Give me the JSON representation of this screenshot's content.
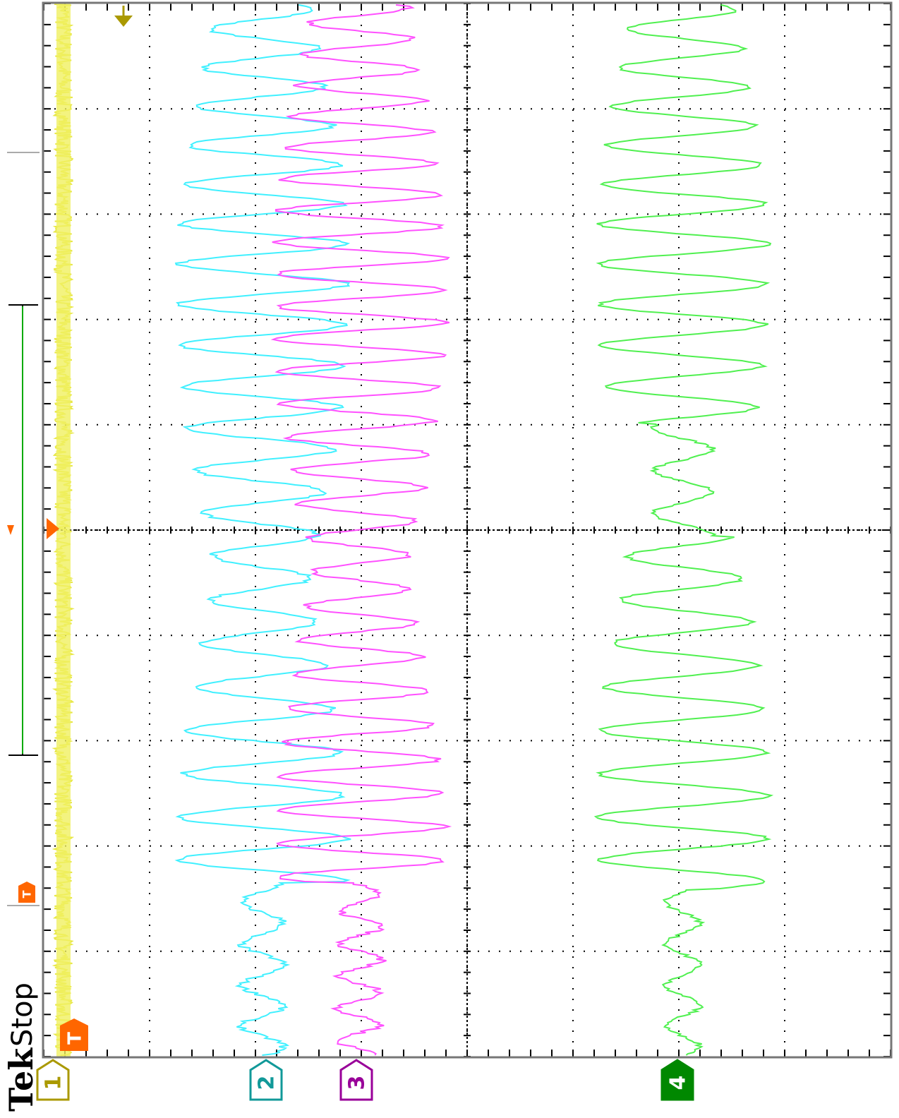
{
  "screen": {
    "brand": "Tek",
    "status": "Stop",
    "trigger_marker": "T",
    "channels": [
      {
        "label": "1"
      },
      {
        "label": "2"
      },
      {
        "label": "3"
      },
      {
        "label": "4"
      }
    ]
  }
}
